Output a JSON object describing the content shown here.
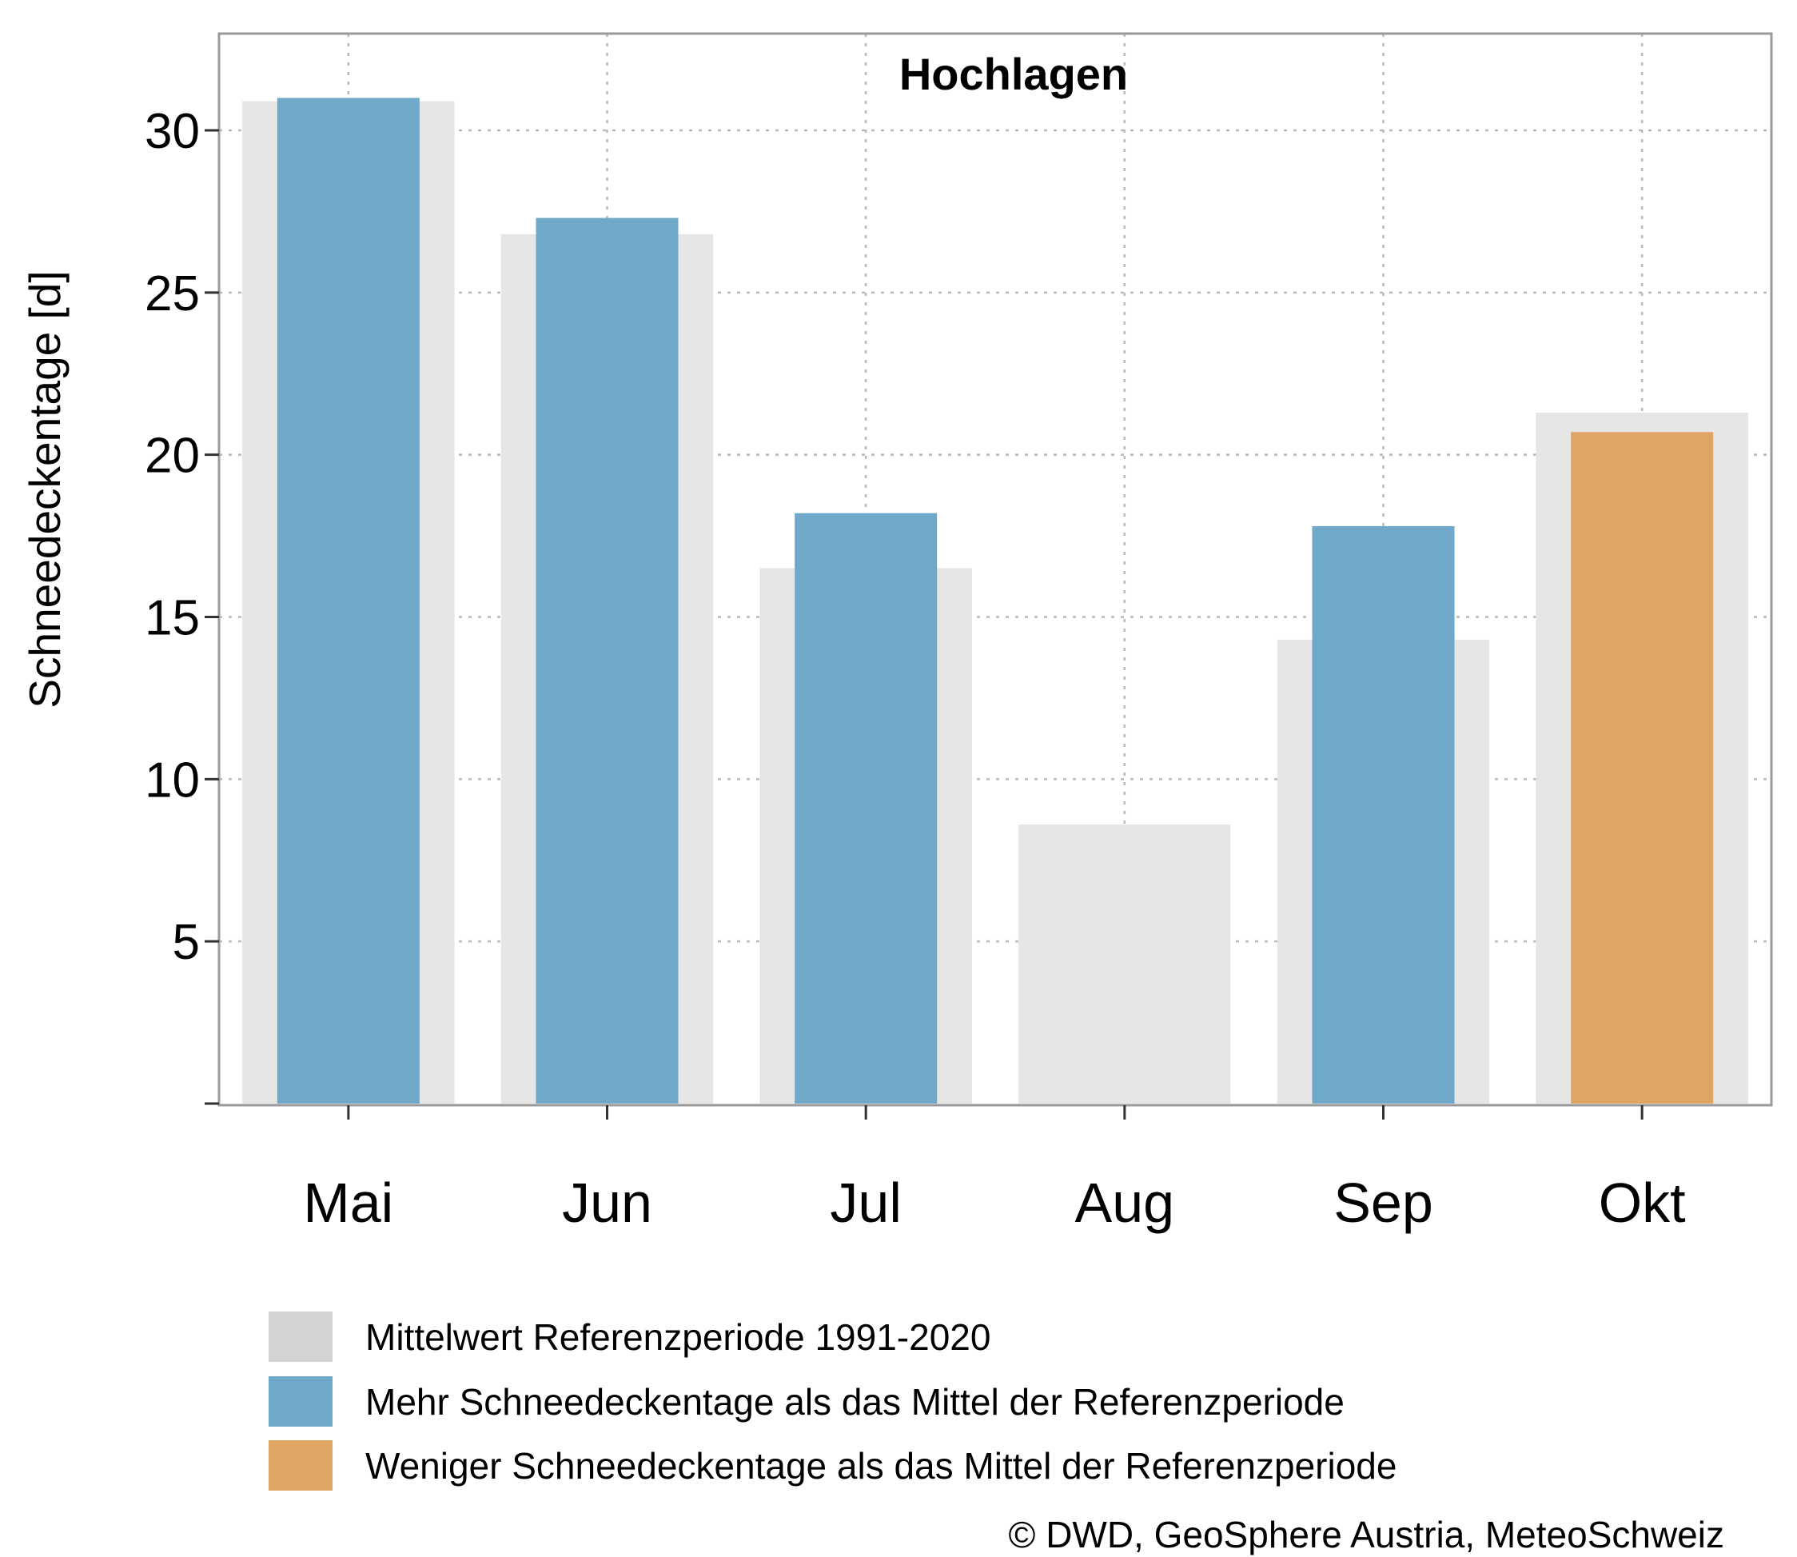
{
  "chart_data": {
    "type": "bar",
    "title": "Hochlagen",
    "ylabel": "Schneedeckentage [d]",
    "xlabel": "",
    "ylim": [
      0,
      33
    ],
    "yticks": [
      5,
      10,
      15,
      20,
      25,
      30
    ],
    "grid": true,
    "categories": [
      "Mai",
      "Jun",
      "Jul",
      "Aug",
      "Sep",
      "Okt"
    ],
    "series": [
      {
        "name": "Mittelwert Referenzperiode 1991-2020",
        "values": [
          30.9,
          26.8,
          16.5,
          8.6,
          14.3,
          21.3
        ]
      },
      {
        "values": [
          31.0,
          27.3,
          18.2,
          0,
          17.8,
          20.7
        ]
      }
    ],
    "legend": {
      "placement": "bottom",
      "items": [
        {
          "label": "Mittelwert Referenzperiode 1991-2020",
          "color": "#d3d3d3"
        },
        {
          "label": "Mehr Schneedeckentage als das Mittel der Referenzperiode",
          "color": "#6fa8c8"
        },
        {
          "label": "Weniger Schneedeckentage als das Mittel der Referenzperiode",
          "color": "#e0a563"
        }
      ]
    },
    "colors": {
      "reference": "#e6e6e6",
      "more": "#6fa8c8",
      "less": "#e0a563",
      "grid": "#b9b9b9",
      "axis": "#9a9a9a"
    }
  },
  "credit": "© DWD, GeoSphere Austria, MeteoSchweiz"
}
